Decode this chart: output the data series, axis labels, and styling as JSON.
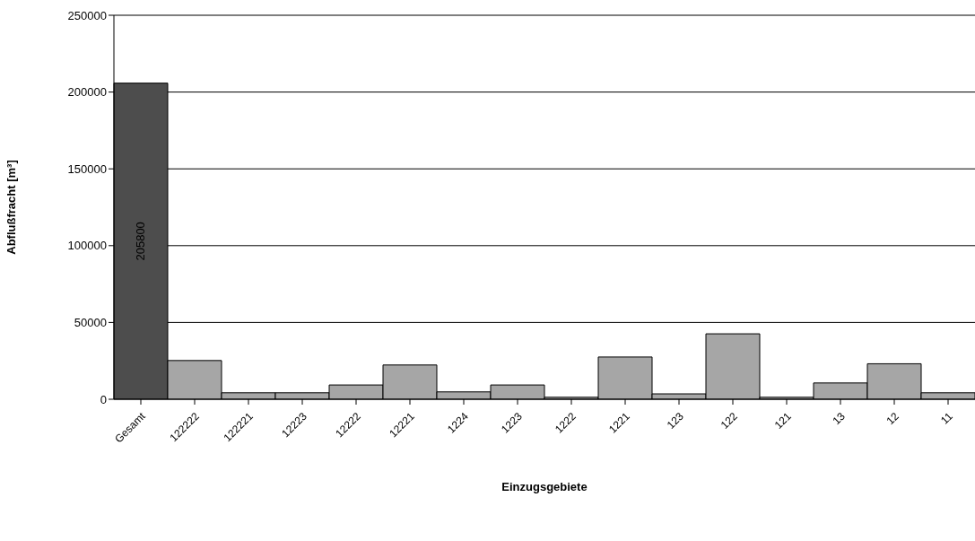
{
  "chart_data": {
    "type": "bar",
    "xlabel": "Einzugsgebiete",
    "ylabel": "Abflußfracht [m³]",
    "categories": [
      "Gesamt",
      "122222",
      "122221",
      "12223",
      "12222",
      "12221",
      "1224",
      "1223",
      "1222",
      "1221",
      "123",
      "122",
      "121",
      "13",
      "12",
      "11"
    ],
    "values": [
      205800,
      25200,
      4200,
      4200,
      9300,
      22300,
      4800,
      9300,
      1300,
      27500,
      3500,
      42600,
      1300,
      10600,
      23100,
      4200
    ],
    "colors": [
      "#4d4d4d",
      "#a6a6a6",
      "#a6a6a6",
      "#a6a6a6",
      "#a6a6a6",
      "#a6a6a6",
      "#a6a6a6",
      "#a6a6a6",
      "#a6a6a6",
      "#a6a6a6",
      "#a6a6a6",
      "#a6a6a6",
      "#a6a6a6",
      "#a6a6a6",
      "#a6a6a6",
      "#a6a6a6"
    ],
    "value_labels": [
      "205800",
      null,
      null,
      null,
      null,
      null,
      null,
      null,
      null,
      null,
      null,
      null,
      null,
      null,
      null,
      null
    ],
    "ylim": [
      0,
      250000
    ],
    "yticks": [
      0,
      50000,
      100000,
      150000,
      200000,
      250000
    ],
    "grid": "y"
  }
}
